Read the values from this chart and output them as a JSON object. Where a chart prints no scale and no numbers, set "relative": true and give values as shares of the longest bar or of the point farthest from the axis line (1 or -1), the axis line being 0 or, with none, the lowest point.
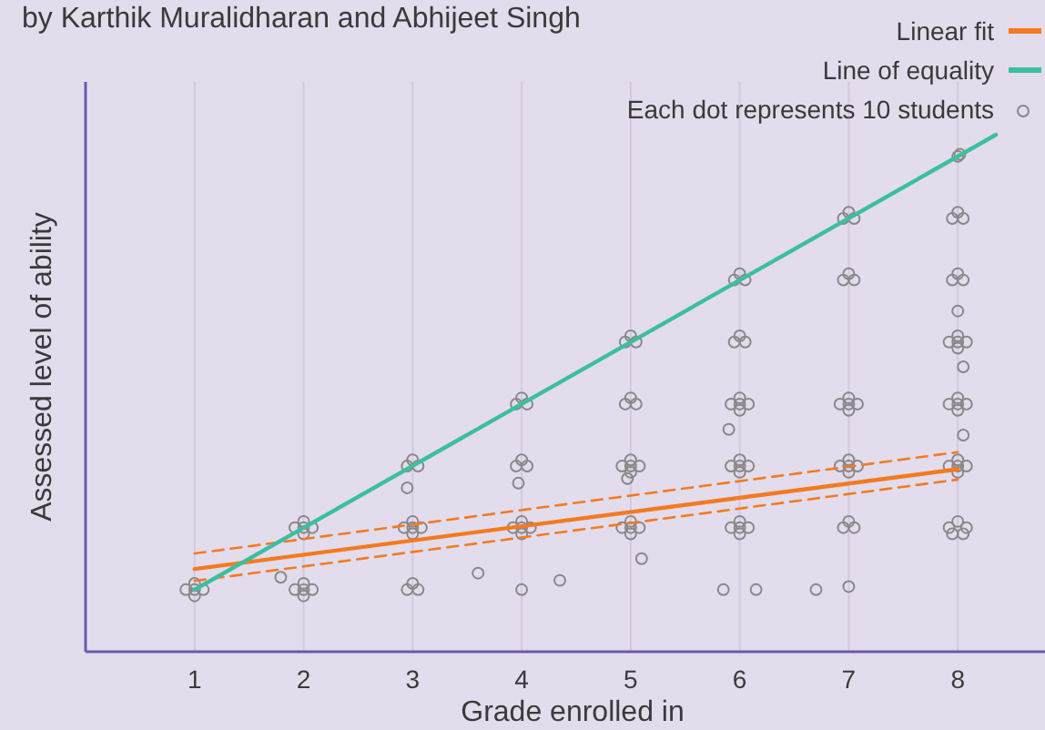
{
  "chart_data": {
    "type": "scatter",
    "subtitle": "by Karthik Muralidharan and Abhijeet Singh",
    "xlabel": "Grade enrolled in",
    "ylabel": "Assessed level of ability",
    "relative": true,
    "xlim": [
      0,
      8.8
    ],
    "xticks": [
      1,
      2,
      3,
      4,
      5,
      6,
      7,
      8
    ],
    "grid": "x",
    "legend": "top right",
    "series": [
      {
        "name": "Linear fit",
        "type": "line",
        "color": "#f47a20",
        "line_style": "solid",
        "x": [
          1,
          8
        ],
        "values": [
          0.16,
          0.353
        ]
      },
      {
        "type": "line",
        "color": "#f47a20",
        "line_style": "dashed",
        "x": [
          1,
          8
        ],
        "values": [
          0.137,
          0.333
        ]
      },
      {
        "type": "line",
        "color": "#f47a20",
        "line_style": "dashed",
        "x": [
          1,
          8
        ],
        "values": [
          0.19,
          0.386
        ]
      },
      {
        "name": "Line of equality",
        "type": "line",
        "color": "#3cbf9e",
        "line_style": "solid",
        "x": [
          1,
          8.35
        ],
        "values": [
          0.12,
          1
        ]
      },
      {
        "name": "Each dot represents 10 students",
        "color": "#888888",
        "marker": "circle",
        "x": [
          0.92,
          1.08,
          1,
          1,
          1,
          1.92,
          2.08,
          2,
          2,
          2,
          1.92,
          2.08,
          2,
          2,
          2,
          1.79,
          2.95,
          3.05,
          3,
          2.92,
          3.08,
          3,
          3,
          3,
          2.95,
          3.05,
          3,
          2.95,
          3.92,
          4.08,
          4,
          4,
          4,
          3.95,
          4.05,
          4,
          3.95,
          4.05,
          4,
          3.6,
          4.35,
          4,
          3.97,
          4.92,
          5.08,
          5,
          5,
          5,
          4.92,
          5.08,
          5,
          5,
          5,
          4.95,
          5.05,
          5,
          4.95,
          5.05,
          5,
          5.1,
          4.97,
          5.85,
          6.15,
          5.92,
          6.08,
          6,
          6,
          6,
          5.92,
          6.08,
          6,
          6,
          6,
          5.92,
          6.08,
          6,
          6,
          6,
          5.9,
          5.95,
          6.05,
          6,
          5.95,
          6.05,
          6,
          6.7,
          7.0,
          6.95,
          7.05,
          7,
          6.92,
          7.08,
          7,
          7,
          7,
          6.92,
          7.08,
          7,
          7,
          7,
          6.95,
          7.05,
          7,
          6.95,
          7.05,
          7,
          7.92,
          8.08,
          8,
          7.95,
          8.05,
          7.92,
          8.08,
          8,
          8,
          8,
          7.92,
          8.08,
          8,
          8,
          8,
          7.92,
          8.08,
          8,
          8,
          8,
          7.95,
          8.05,
          8,
          7.95,
          8.05,
          8,
          8,
          8.02,
          8.05,
          8.05,
          8.0
        ],
        "values": [
          0.12,
          0.12,
          0.132,
          0.108,
          0.12,
          0.12,
          0.12,
          0.132,
          0.108,
          0.12,
          0.24,
          0.24,
          0.252,
          0.228,
          0.24,
          0.144,
          0.12,
          0.12,
          0.132,
          0.24,
          0.24,
          0.252,
          0.228,
          0.24,
          0.359,
          0.359,
          0.371,
          0.317,
          0.24,
          0.24,
          0.252,
          0.228,
          0.24,
          0.359,
          0.359,
          0.371,
          0.479,
          0.479,
          0.491,
          0.152,
          0.138,
          0.12,
          0.326,
          0.24,
          0.24,
          0.252,
          0.228,
          0.24,
          0.359,
          0.359,
          0.371,
          0.347,
          0.359,
          0.479,
          0.479,
          0.491,
          0.599,
          0.599,
          0.611,
          0.18,
          0.335,
          0.12,
          0.12,
          0.24,
          0.24,
          0.252,
          0.228,
          0.24,
          0.359,
          0.359,
          0.371,
          0.347,
          0.359,
          0.479,
          0.479,
          0.491,
          0.467,
          0.479,
          0.43,
          0.599,
          0.599,
          0.611,
          0.719,
          0.719,
          0.731,
          0.12,
          0.126,
          0.24,
          0.24,
          0.252,
          0.359,
          0.359,
          0.371,
          0.347,
          0.359,
          0.479,
          0.479,
          0.491,
          0.467,
          0.479,
          0.719,
          0.719,
          0.731,
          0.838,
          0.838,
          0.85,
          0.24,
          0.24,
          0.252,
          0.228,
          0.228,
          0.359,
          0.359,
          0.371,
          0.347,
          0.359,
          0.479,
          0.479,
          0.491,
          0.467,
          0.479,
          0.599,
          0.599,
          0.611,
          0.587,
          0.599,
          0.719,
          0.719,
          0.731,
          0.838,
          0.838,
          0.85,
          0.958,
          0.962,
          0.419,
          0.551,
          0.659
        ]
      }
    ]
  }
}
